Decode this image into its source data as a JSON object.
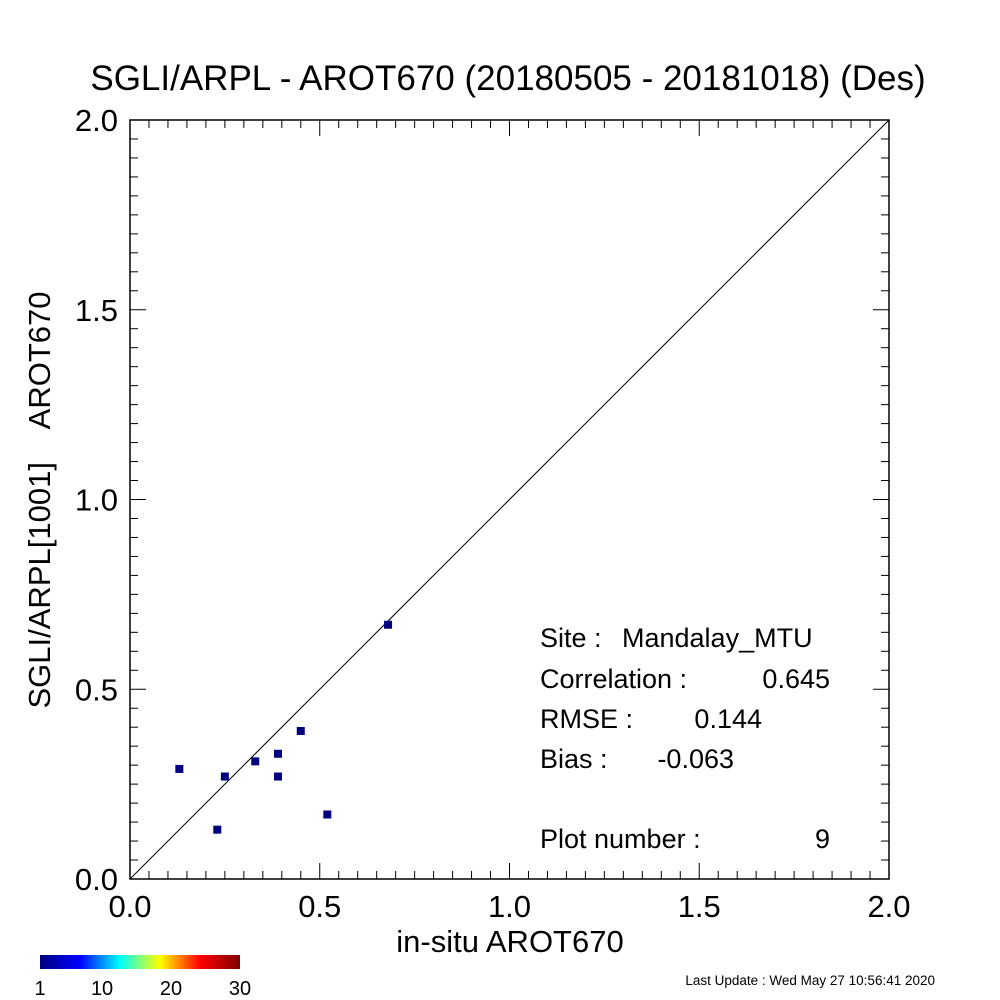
{
  "chart_data": {
    "type": "scatter",
    "title": "SGLI/ARPL - AROT670 (20180505 - 20181018) (Des)",
    "xlabel": "in-situ AROT670",
    "ylabel": "SGLI/ARPL[1001]    AROT670",
    "xlim": [
      0.0,
      2.0
    ],
    "ylim": [
      0.0,
      2.0
    ],
    "x_ticks": [
      "0.0",
      "0.5",
      "1.0",
      "1.5",
      "2.0"
    ],
    "y_ticks": [
      "0.0",
      "0.5",
      "1.0",
      "1.5",
      "2.0"
    ],
    "grid": false,
    "reference_line": "1:1",
    "point_color": "#00007f",
    "points": [
      {
        "x": 0.13,
        "y": 0.29
      },
      {
        "x": 0.23,
        "y": 0.13
      },
      {
        "x": 0.25,
        "y": 0.27
      },
      {
        "x": 0.33,
        "y": 0.31
      },
      {
        "x": 0.39,
        "y": 0.33
      },
      {
        "x": 0.39,
        "y": 0.27
      },
      {
        "x": 0.45,
        "y": 0.39
      },
      {
        "x": 0.52,
        "y": 0.17
      },
      {
        "x": 0.68,
        "y": 0.67
      }
    ],
    "stats": {
      "site_label": "Site :",
      "site": "Mandalay_MTU",
      "correlation_label": "Correlation :",
      "correlation": "0.645",
      "rmse_label": "RMSE :",
      "rmse": "0.144",
      "bias_label": "Bias :",
      "bias": "-0.063",
      "plot_number_label": "Plot number :",
      "plot_number": "9"
    },
    "colorbar": {
      "tick_labels": [
        "1",
        "10",
        "20",
        "30"
      ],
      "tick_values": [
        1,
        10,
        20,
        30
      ],
      "range": [
        1,
        30
      ],
      "colors": [
        "#00007f",
        "#0000ff",
        "#00ffff",
        "#ffff00",
        "#ff0000",
        "#7f0000"
      ]
    }
  },
  "footer": {
    "last_update": "Last Update : Wed May 27 10:56:41 2020"
  }
}
